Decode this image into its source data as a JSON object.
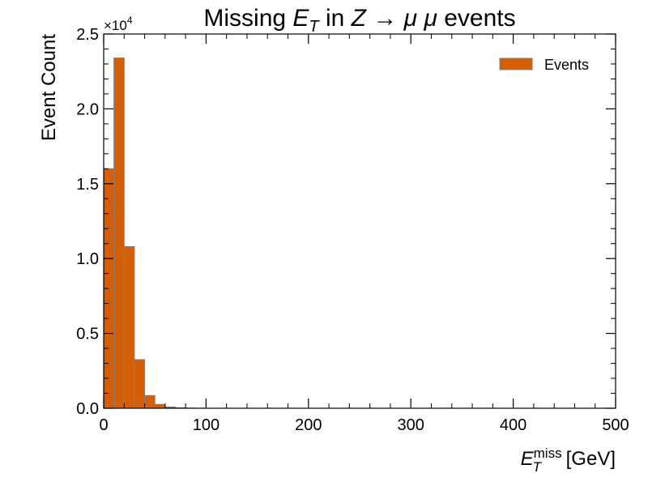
{
  "chart_data": {
    "type": "bar",
    "title_parts": {
      "t1": "Missing ",
      "t2": "E",
      "t3": "T",
      "t4": " in ",
      "t5": "Z",
      "t6": " → ",
      "t7": "μ μ",
      "t8": " events"
    },
    "xlabel_parts": {
      "e": "E",
      "sup": "miss",
      "sub": "T",
      "unit": "[GeV]"
    },
    "ylabel": "Event Count",
    "y_multiplier": {
      "base": "×10",
      "exp": "4"
    },
    "xlim": [
      0,
      500
    ],
    "ylim": [
      0,
      25000
    ],
    "x_ticks": [
      0,
      100,
      200,
      300,
      400,
      500
    ],
    "x_tick_labels": [
      "0",
      "100",
      "200",
      "300",
      "400",
      "500"
    ],
    "y_ticks": [
      0,
      5000,
      10000,
      15000,
      20000,
      25000
    ],
    "y_tick_labels": [
      "0.0",
      "0.5",
      "1.0",
      "1.5",
      "2.0",
      "2.5"
    ],
    "bin_width": 10,
    "bin_edges_start": [
      0,
      10,
      20,
      30,
      40,
      50,
      60,
      70,
      80,
      90
    ],
    "values": [
      16000,
      23400,
      10800,
      3250,
      850,
      260,
      85,
      30,
      12,
      5
    ],
    "series": [
      {
        "name": "Events",
        "color": "#d55e00",
        "edge_color": "#808080"
      }
    ],
    "legend": {
      "label": "Events",
      "position": "top-right"
    },
    "grid": false
  }
}
